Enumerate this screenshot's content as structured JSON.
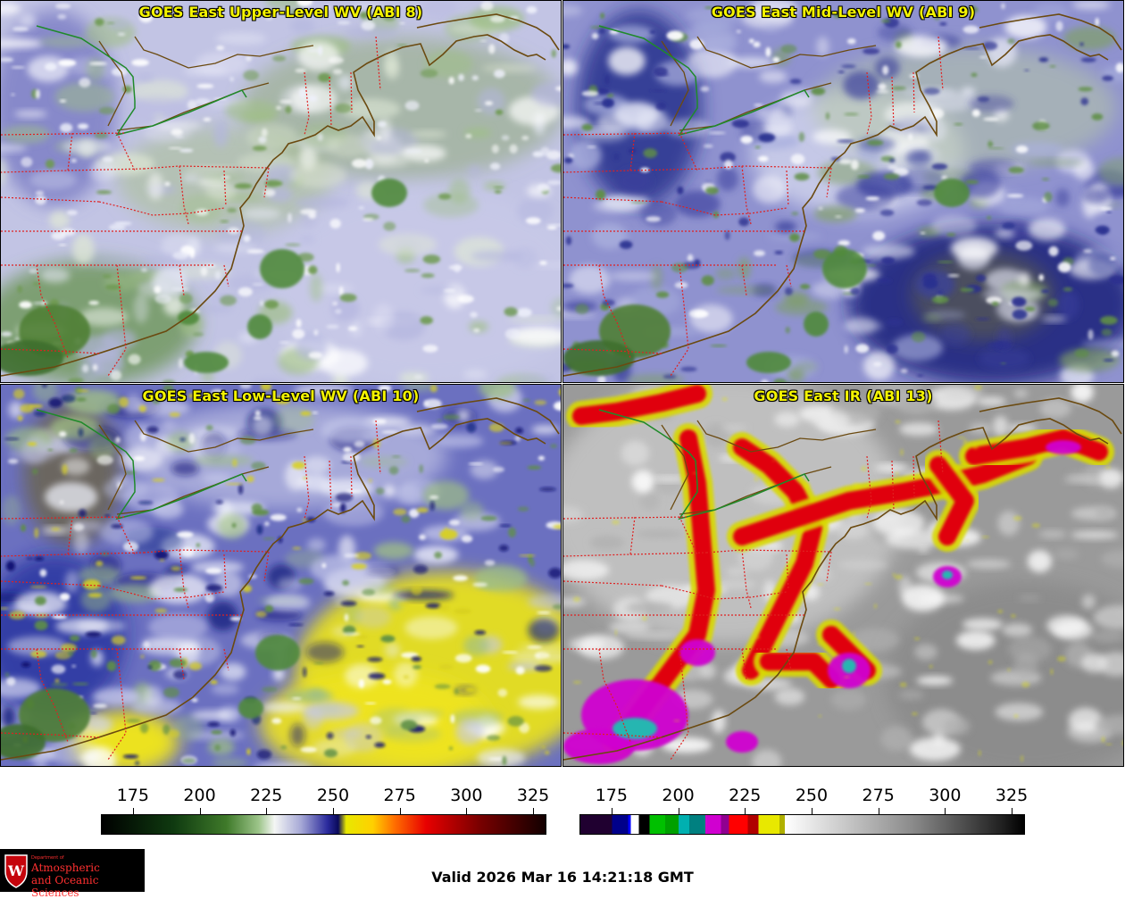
{
  "panels": [
    {
      "title": "GOES East Upper-Level WV (ABI 8)",
      "style": "wv-upper"
    },
    {
      "title": "GOES East Mid-Level WV (ABI 9)",
      "style": "wv-mid"
    },
    {
      "title": "GOES East Low-Level WV (ABI 10)",
      "style": "wv-low"
    },
    {
      "title": "GOES East IR (ABI 13)",
      "style": "ir"
    }
  ],
  "colorbar_wv": {
    "tick_labels": [
      "175",
      "200",
      "225",
      "250",
      "275",
      "300",
      "325"
    ],
    "tick_values": [
      175,
      200,
      225,
      250,
      275,
      300,
      325
    ],
    "range": [
      163,
      330
    ],
    "stops": [
      {
        "v": 163,
        "c": "#000000"
      },
      {
        "v": 190,
        "c": "#0f3a10"
      },
      {
        "v": 210,
        "c": "#3f7a2a"
      },
      {
        "v": 222,
        "c": "#9cc489"
      },
      {
        "v": 228,
        "c": "#f4f6f4"
      },
      {
        "v": 238,
        "c": "#a6a8d6"
      },
      {
        "v": 248,
        "c": "#2a2a9c"
      },
      {
        "v": 252,
        "c": "#0a0a5a"
      },
      {
        "v": 255,
        "c": "#e8e800"
      },
      {
        "v": 265,
        "c": "#ffd000"
      },
      {
        "v": 273,
        "c": "#ff7000"
      },
      {
        "v": 285,
        "c": "#e80000"
      },
      {
        "v": 305,
        "c": "#7a0000"
      },
      {
        "v": 330,
        "c": "#120000"
      }
    ]
  },
  "colorbar_ir": {
    "tick_labels": [
      "175",
      "200",
      "225",
      "250",
      "275",
      "300",
      "325"
    ],
    "tick_values": [
      175,
      200,
      225,
      250,
      275,
      300,
      325
    ],
    "range": [
      163,
      330
    ],
    "segments": [
      {
        "from": 163,
        "to": 175,
        "c": "#200030"
      },
      {
        "from": 175,
        "to": 181,
        "c": "#00008a"
      },
      {
        "from": 181,
        "to": 182,
        "c": "#0000ff"
      },
      {
        "from": 182,
        "to": 185,
        "c": "#ffffff"
      },
      {
        "from": 185,
        "to": 189,
        "c": "#000000"
      },
      {
        "from": 189,
        "to": 195,
        "c": "#00c000"
      },
      {
        "from": 195,
        "to": 200,
        "c": "#00a000"
      },
      {
        "from": 200,
        "to": 204,
        "c": "#00b0b0"
      },
      {
        "from": 204,
        "to": 210,
        "c": "#008080"
      },
      {
        "from": 210,
        "to": 216,
        "c": "#d000d0"
      },
      {
        "from": 216,
        "to": 219,
        "c": "#900090"
      },
      {
        "from": 219,
        "to": 226,
        "c": "#ff0000"
      },
      {
        "from": 226,
        "to": 230,
        "c": "#b00000"
      },
      {
        "from": 230,
        "to": 238,
        "c": "#e8e800"
      },
      {
        "from": 238,
        "to": 240,
        "c": "#b0b000"
      }
    ],
    "gray_from": 240,
    "gray_to": 330
  },
  "logo": {
    "department": "Department of",
    "line1": "Atmospheric",
    "line2": "and Oceanic Sciences",
    "shield_letter": "W"
  },
  "valid_text": "Valid 2026 Mar 16 14:21:18 GMT"
}
